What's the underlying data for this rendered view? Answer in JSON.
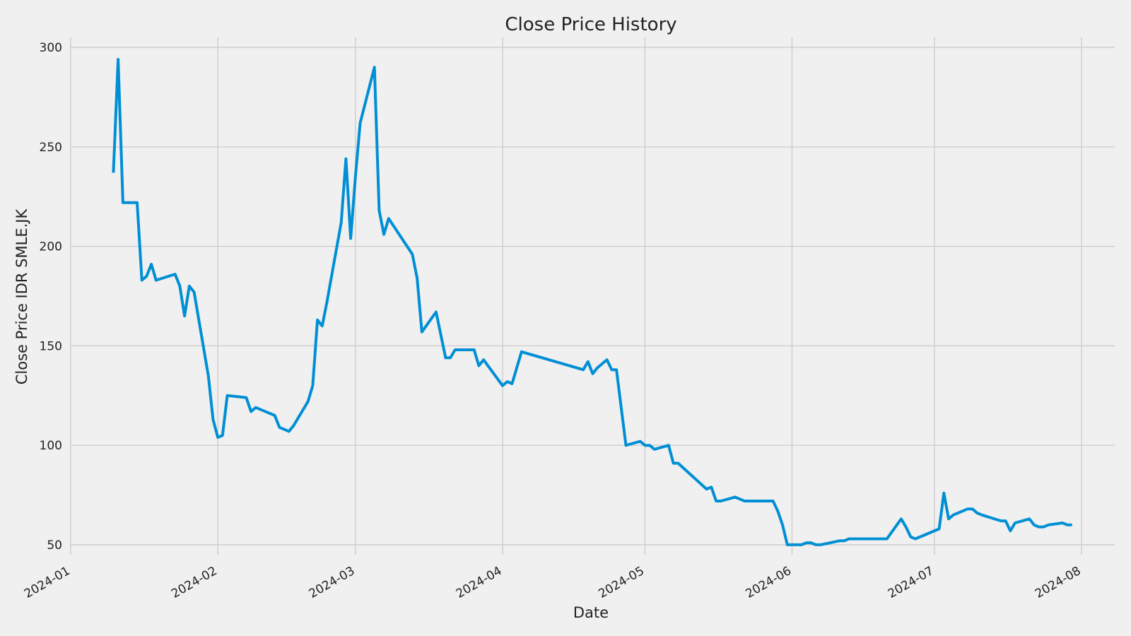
{
  "chart_data": {
    "type": "line",
    "title": "Close Price History",
    "xlabel": "Date",
    "ylabel": "Close Price IDR SMLE.JK",
    "xlim": [
      "2024-01-01",
      "2024-08-08"
    ],
    "ylim": [
      45,
      305
    ],
    "x_ticks": [
      "2024-01",
      "2024-02",
      "2024-03",
      "2024-04",
      "2024-05",
      "2024-06",
      "2024-07",
      "2024-08"
    ],
    "y_ticks": [
      50,
      100,
      150,
      200,
      250,
      300
    ],
    "grid": true,
    "line_color": "#008fd5",
    "series": [
      {
        "x": [
          "2024-01-10",
          "2024-01-11",
          "2024-01-12",
          "2024-01-15",
          "2024-01-16",
          "2024-01-17",
          "2024-01-18",
          "2024-01-19",
          "2024-01-23",
          "2024-01-24",
          "2024-01-25",
          "2024-01-26",
          "2024-01-27",
          "2024-01-30",
          "2024-01-31",
          "2024-02-01",
          "2024-02-02",
          "2024-02-03",
          "2024-02-07",
          "2024-02-08",
          "2024-02-09",
          "2024-02-13",
          "2024-02-14",
          "2024-02-16",
          "2024-02-17",
          "2024-02-20",
          "2024-02-21",
          "2024-02-22",
          "2024-02-23",
          "2024-02-24",
          "2024-02-27",
          "2024-02-28",
          "2024-02-29",
          "2024-03-01",
          "2024-03-02",
          "2024-03-05",
          "2024-03-06",
          "2024-03-07",
          "2024-03-08",
          "2024-03-13",
          "2024-03-14",
          "2024-03-15",
          "2024-03-18",
          "2024-03-20",
          "2024-03-21",
          "2024-03-22",
          "2024-03-26",
          "2024-03-27",
          "2024-03-28",
          "2024-04-01",
          "2024-04-02",
          "2024-04-03",
          "2024-04-05",
          "2024-04-18",
          "2024-04-19",
          "2024-04-20",
          "2024-04-21",
          "2024-04-23",
          "2024-04-24",
          "2024-04-25",
          "2024-04-27",
          "2024-04-30",
          "2024-05-01",
          "2024-05-02",
          "2024-05-03",
          "2024-05-06",
          "2024-05-07",
          "2024-05-08",
          "2024-05-14",
          "2024-05-15",
          "2024-05-16",
          "2024-05-17",
          "2024-05-20",
          "2024-05-21",
          "2024-05-22",
          "2024-05-28",
          "2024-05-29",
          "2024-05-30",
          "2024-05-31",
          "2024-06-03",
          "2024-06-04",
          "2024-06-05",
          "2024-06-06",
          "2024-06-07",
          "2024-06-11",
          "2024-06-12",
          "2024-06-13",
          "2024-06-14",
          "2024-06-21",
          "2024-06-24",
          "2024-06-25",
          "2024-06-26",
          "2024-06-27",
          "2024-07-02",
          "2024-07-03",
          "2024-07-04",
          "2024-07-05",
          "2024-07-08",
          "2024-07-09",
          "2024-07-10",
          "2024-07-11",
          "2024-07-15",
          "2024-07-16",
          "2024-07-17",
          "2024-07-18",
          "2024-07-21",
          "2024-07-22",
          "2024-07-23",
          "2024-07-24",
          "2024-07-25",
          "2024-07-28",
          "2024-07-29",
          "2024-07-30"
        ],
        "values": [
          237,
          294,
          222,
          222,
          183,
          185,
          191,
          183,
          186,
          180,
          165,
          180,
          177,
          135,
          113,
          104,
          105,
          125,
          124,
          117,
          119,
          115,
          109,
          107,
          110,
          122,
          130,
          163,
          160,
          172,
          212,
          244,
          204,
          235,
          262,
          290,
          218,
          206,
          214,
          196,
          184,
          157,
          167,
          144,
          144,
          148,
          148,
          140,
          143,
          130,
          132,
          131,
          147,
          138,
          142,
          136,
          139,
          143,
          138,
          138,
          100,
          102,
          100,
          100,
          98,
          100,
          91,
          91,
          78,
          79,
          72,
          72,
          74,
          73,
          72,
          72,
          67,
          60,
          50,
          50,
          51,
          51,
          50,
          50,
          52,
          52,
          53,
          53,
          53,
          63,
          59,
          54,
          53,
          58,
          76,
          63,
          65,
          68,
          68,
          66,
          65,
          62,
          62,
          57,
          61,
          63,
          60,
          59,
          59,
          60,
          61,
          60,
          60
        ]
      }
    ]
  }
}
